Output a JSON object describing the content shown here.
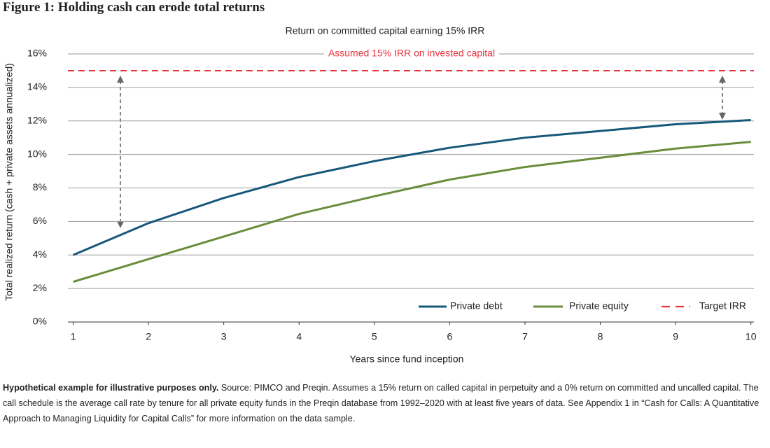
{
  "chart_data": {
    "type": "line",
    "title": "Figure 1: Holding cash can erode total returns",
    "subtitle": "Return on committed capital earning 15% IRR",
    "x_label": "Years since fund inception",
    "y_label": "Total realized return (cash + private assets annualized)",
    "x": [
      1,
      2,
      3,
      4,
      5,
      6,
      7,
      8,
      9,
      10
    ],
    "series": [
      {
        "name": "Private debt",
        "color": "#17587a",
        "values": [
          4.0,
          5.9,
          7.4,
          8.65,
          9.6,
          10.4,
          11.0,
          11.4,
          11.8,
          12.05
        ]
      },
      {
        "name": "Private equity",
        "color": "#6a8c3c",
        "values": [
          2.4,
          3.75,
          5.1,
          6.45,
          7.5,
          8.5,
          9.25,
          9.8,
          10.35,
          10.75
        ]
      }
    ],
    "reference_line": {
      "name": "Target IRR",
      "value": 15,
      "color": "#e8333c",
      "annotation": "Assumed 15% IRR on invested capital"
    },
    "xlim": [
      0.93,
      10.04
    ],
    "xticks": [
      1,
      2,
      3,
      4,
      5,
      6,
      7,
      8,
      9,
      10
    ],
    "ylim": [
      0,
      16
    ],
    "yticks": [
      {
        "value": 0,
        "label": "0%"
      },
      {
        "value": 2,
        "label": "2%"
      },
      {
        "value": 4,
        "label": "4%"
      },
      {
        "value": 6,
        "label": "6%"
      },
      {
        "value": 8,
        "label": "8%"
      },
      {
        "value": 10,
        "label": "10%"
      },
      {
        "value": 12,
        "label": "12%"
      },
      {
        "value": 14,
        "label": "14%"
      },
      {
        "value": 16,
        "label": "16%"
      }
    ],
    "grid": true,
    "legend_position": "lower right",
    "footnote": {
      "bold": "Hypothetical example for illustrative purposes only.",
      "text": " Source: PIMCO and Preqin. Assumes a 15% return on called capital in perpetuity and a 0% return on committed and uncalled capital. The call schedule is the average call rate by tenure for all private equity funds in the Preqin database from 1992–2020 with at least five years of data. See Appendix 1 in “Cash for Calls: A Quantitative Approach to Managing Liquidity for Capital Calls” for more information on the data sample."
    }
  }
}
